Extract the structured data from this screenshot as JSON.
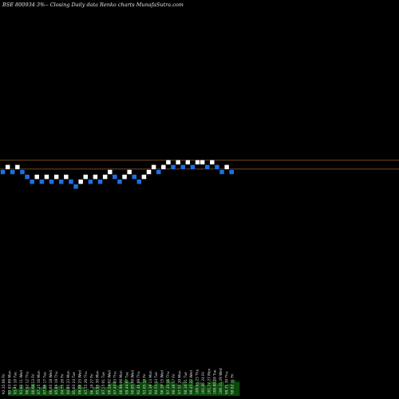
{
  "header": {
    "title": "BSE 800934  3%--  Closing Daily data  Renko  charts MunafaSutra.com"
  },
  "colors": {
    "background": "#000000",
    "up_brick": "#ffffff",
    "down_brick": "#1e6fe0",
    "brick_outline": "#000000",
    "level_line": "#a0602a",
    "volume": "#0b4a0b",
    "label": "#dddddd"
  },
  "chart_data": {
    "type": "renko",
    "title": "BSE 800934  3%--  Closing Daily data  Renko  charts MunafaSutra.com",
    "brick_percent": 3,
    "bricks": [
      {
        "dir": "down",
        "level": 0
      },
      {
        "dir": "up",
        "level": 1
      },
      {
        "dir": "down",
        "level": 0
      },
      {
        "dir": "up",
        "level": 1
      },
      {
        "dir": "down",
        "level": 0
      },
      {
        "dir": "down",
        "level": -1
      },
      {
        "dir": "down",
        "level": -2
      },
      {
        "dir": "up",
        "level": -1
      },
      {
        "dir": "down",
        "level": -2
      },
      {
        "dir": "up",
        "level": -1
      },
      {
        "dir": "down",
        "level": -2
      },
      {
        "dir": "up",
        "level": -1
      },
      {
        "dir": "down",
        "level": -2
      },
      {
        "dir": "up",
        "level": -1
      },
      {
        "dir": "down",
        "level": -2
      },
      {
        "dir": "down",
        "level": -3
      },
      {
        "dir": "up",
        "level": -2
      },
      {
        "dir": "up",
        "level": -1
      },
      {
        "dir": "down",
        "level": -2
      },
      {
        "dir": "up",
        "level": -1
      },
      {
        "dir": "down",
        "level": -2
      },
      {
        "dir": "up",
        "level": -1
      },
      {
        "dir": "up",
        "level": 0
      },
      {
        "dir": "down",
        "level": -1
      },
      {
        "dir": "down",
        "level": -2
      },
      {
        "dir": "up",
        "level": -1
      },
      {
        "dir": "up",
        "level": 0
      },
      {
        "dir": "down",
        "level": -1
      },
      {
        "dir": "down",
        "level": -2
      },
      {
        "dir": "up",
        "level": -1
      },
      {
        "dir": "up",
        "level": 0
      },
      {
        "dir": "up",
        "level": 1
      },
      {
        "dir": "down",
        "level": 0
      },
      {
        "dir": "up",
        "level": 1
      },
      {
        "dir": "up",
        "level": 2
      },
      {
        "dir": "down",
        "level": 1
      },
      {
        "dir": "up",
        "level": 2
      },
      {
        "dir": "down",
        "level": 1
      },
      {
        "dir": "up",
        "level": 2
      },
      {
        "dir": "down",
        "level": 1
      },
      {
        "dir": "up",
        "level": 2
      },
      {
        "dir": "up",
        "level": 2
      },
      {
        "dir": "down",
        "level": 1
      },
      {
        "dir": "up",
        "level": 2
      },
      {
        "dir": "down",
        "level": 1
      },
      {
        "dir": "down",
        "level": 0
      },
      {
        "dir": "up",
        "level": 1
      },
      {
        "dir": "down",
        "level": 0
      }
    ],
    "price_lines": [
      2.4,
      0.6
    ],
    "date_labels": [
      "92.35 06 Fri",
      "93.63 09 Mon",
      "93.45 10 Tue",
      "91.63 11 Wed",
      "90.92 12 Thu",
      "88.60 13 Fri",
      "87.25 16 Mon",
      "87.96 17 Tue",
      "86.65 18 Wed",
      "85.86 19 Thu",
      "84.55 20 Fri",
      "84.95 23 Mon",
      "85.63 24 Tue",
      "86.88 25 Wed",
      "87.15 26 Thu",
      "86.10 27 Fri",
      "85.95 30 Mon",
      "87.55 01 Tue",
      "88.26 02 Wed",
      "87.45 03 Thu",
      "88.90 06 Mon",
      "89.44 07 Tue",
      "90.85 08 Wed",
      "92.40 09 Thu",
      "93.05 10 Fri",
      "93.36 13 Mon",
      "94.55 14 Tue",
      "96.30 15 Wed",
      "97.35 16 Thu",
      "98.30 17 Fri",
      "97.55 20 Mon",
      "98.10 21 Tue",
      "99.45 22 Wed",
      "100.65 23 Thu",
      "101.05 24 Fri",
      "101.77 27 Mon",
      "100.88 28 Tue",
      "100.15 29 Wed",
      "99.75 30 Thu",
      "98.62 31 Fri"
    ],
    "volumes": [
      3,
      5,
      4,
      6,
      4,
      5,
      7,
      4,
      5,
      6,
      3,
      4,
      5,
      6,
      4,
      5,
      3,
      4,
      6,
      5,
      4,
      3,
      5,
      6,
      4,
      5,
      7,
      8,
      6,
      7,
      9,
      8,
      7,
      6,
      8,
      9,
      7,
      6,
      8,
      7,
      6,
      9,
      8,
      7,
      6,
      8,
      7,
      9,
      6,
      8,
      7,
      6,
      8,
      9,
      7,
      8,
      6,
      7,
      9,
      8
    ]
  }
}
